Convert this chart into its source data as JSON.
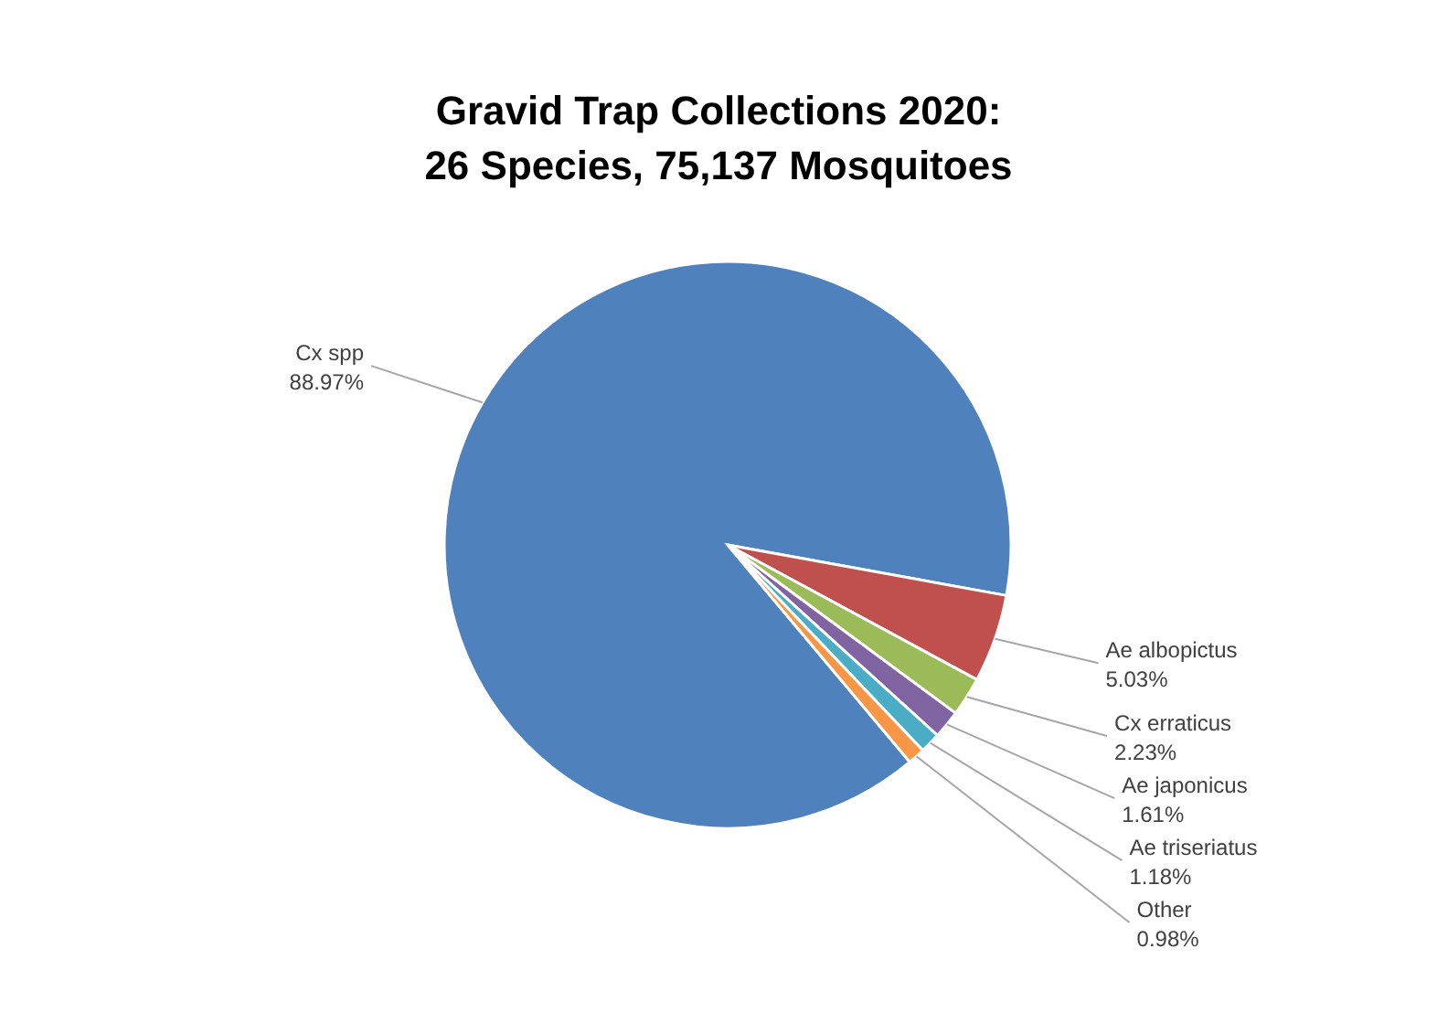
{
  "chart_data": {
    "type": "pie",
    "title": "Gravid Trap Collections 2020:\n26 Species, 75,137 Mosquitoes",
    "categories": [
      "Cx spp",
      "Ae albopictus",
      "Cx erraticus",
      "Ae japonicus",
      "Ae triseriatus",
      "Other"
    ],
    "values": [
      88.97,
      5.03,
      2.23,
      1.61,
      1.18,
      0.98
    ],
    "colors": [
      "#4f81bd",
      "#c0504d",
      "#9bbb59",
      "#8064a2",
      "#4bacc6",
      "#f79646"
    ],
    "value_labels": [
      "88.97%",
      "5.03%",
      "2.23%",
      "1.61%",
      "1.18%",
      "0.98%"
    ]
  }
}
